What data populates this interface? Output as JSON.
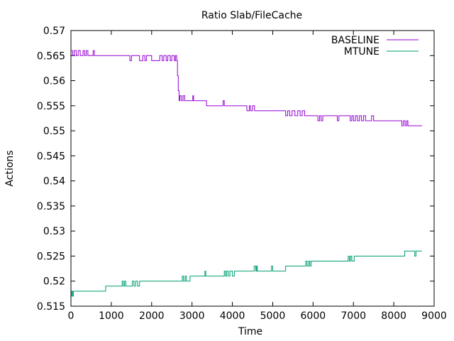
{
  "chart_data": {
    "type": "line",
    "title": "Ratio Slab/FileCache",
    "xlabel": "Time",
    "ylabel": "Actions",
    "xlim": [
      0,
      9000
    ],
    "ylim": [
      0.515,
      0.57
    ],
    "x_ticks": [
      "0",
      "1000",
      "2000",
      "3000",
      "4000",
      "5000",
      "6000",
      "7000",
      "8000",
      "9000"
    ],
    "y_ticks": [
      "0.515",
      "0.52",
      "0.525",
      "0.53",
      "0.535",
      "0.54",
      "0.545",
      "0.55",
      "0.555",
      "0.56",
      "0.565",
      "0.57"
    ],
    "grid": false,
    "legend_position": "top-right",
    "series": [
      {
        "name": "BASELINE",
        "color": "#9400d3",
        "points": [
          [
            0,
            0.566
          ],
          [
            40,
            0.565
          ],
          [
            80,
            0.566
          ],
          [
            130,
            0.565
          ],
          [
            180,
            0.566
          ],
          [
            230,
            0.565
          ],
          [
            300,
            0.566
          ],
          [
            340,
            0.565
          ],
          [
            380,
            0.566
          ],
          [
            420,
            0.565
          ],
          [
            550,
            0.566
          ],
          [
            580,
            0.565
          ],
          [
            1400,
            0.565
          ],
          [
            1460,
            0.564
          ],
          [
            1500,
            0.565
          ],
          [
            1680,
            0.565
          ],
          [
            1700,
            0.564
          ],
          [
            1780,
            0.565
          ],
          [
            1830,
            0.564
          ],
          [
            1870,
            0.565
          ],
          [
            1950,
            0.565
          ],
          [
            2000,
            0.564
          ],
          [
            2140,
            0.564
          ],
          [
            2200,
            0.565
          ],
          [
            2260,
            0.564
          ],
          [
            2300,
            0.565
          ],
          [
            2360,
            0.564
          ],
          [
            2400,
            0.565
          ],
          [
            2460,
            0.564
          ],
          [
            2500,
            0.565
          ],
          [
            2560,
            0.564
          ],
          [
            2590,
            0.565
          ],
          [
            2620,
            0.564
          ],
          [
            2640,
            0.561
          ],
          [
            2660,
            0.558
          ],
          [
            2680,
            0.556
          ],
          [
            2700,
            0.557
          ],
          [
            2740,
            0.556
          ],
          [
            2780,
            0.557
          ],
          [
            2820,
            0.556
          ],
          [
            3000,
            0.556
          ],
          [
            3020,
            0.557
          ],
          [
            3040,
            0.556
          ],
          [
            3350,
            0.556
          ],
          [
            3360,
            0.555
          ],
          [
            3750,
            0.555
          ],
          [
            3770,
            0.556
          ],
          [
            3800,
            0.555
          ],
          [
            4350,
            0.555
          ],
          [
            4360,
            0.554
          ],
          [
            4420,
            0.555
          ],
          [
            4450,
            0.554
          ],
          [
            4500,
            0.555
          ],
          [
            4550,
            0.554
          ],
          [
            5300,
            0.554
          ],
          [
            5320,
            0.553
          ],
          [
            5370,
            0.554
          ],
          [
            5420,
            0.553
          ],
          [
            5480,
            0.554
          ],
          [
            5550,
            0.553
          ],
          [
            5620,
            0.554
          ],
          [
            5680,
            0.553
          ],
          [
            5730,
            0.554
          ],
          [
            5790,
            0.553
          ],
          [
            6100,
            0.553
          ],
          [
            6120,
            0.552
          ],
          [
            6160,
            0.553
          ],
          [
            6200,
            0.552
          ],
          [
            6240,
            0.553
          ],
          [
            6580,
            0.553
          ],
          [
            6600,
            0.552
          ],
          [
            6640,
            0.553
          ],
          [
            6900,
            0.553
          ],
          [
            6920,
            0.552
          ],
          [
            6960,
            0.553
          ],
          [
            7000,
            0.552
          ],
          [
            7050,
            0.553
          ],
          [
            7100,
            0.552
          ],
          [
            7150,
            0.553
          ],
          [
            7200,
            0.552
          ],
          [
            7250,
            0.553
          ],
          [
            7300,
            0.552
          ],
          [
            7450,
            0.553
          ],
          [
            7500,
            0.552
          ],
          [
            8180,
            0.552
          ],
          [
            8200,
            0.551
          ],
          [
            8240,
            0.552
          ],
          [
            8280,
            0.551
          ],
          [
            8320,
            0.552
          ],
          [
            8350,
            0.551
          ],
          [
            8700,
            0.551
          ]
        ]
      },
      {
        "name": "MTUNE",
        "color": "#009e73",
        "points": [
          [
            0,
            0.517
          ],
          [
            20,
            0.518
          ],
          [
            40,
            0.517
          ],
          [
            60,
            0.518
          ],
          [
            850,
            0.518
          ],
          [
            860,
            0.519
          ],
          [
            1250,
            0.519
          ],
          [
            1270,
            0.52
          ],
          [
            1300,
            0.519
          ],
          [
            1330,
            0.52
          ],
          [
            1360,
            0.519
          ],
          [
            1500,
            0.519
          ],
          [
            1520,
            0.52
          ],
          [
            1560,
            0.519
          ],
          [
            1600,
            0.52
          ],
          [
            1650,
            0.519
          ],
          [
            1700,
            0.52
          ],
          [
            2250,
            0.52
          ],
          [
            2750,
            0.52
          ],
          [
            2760,
            0.521
          ],
          [
            2790,
            0.52
          ],
          [
            2830,
            0.521
          ],
          [
            2860,
            0.52
          ],
          [
            2900,
            0.52
          ],
          [
            2950,
            0.521
          ],
          [
            3300,
            0.521
          ],
          [
            3320,
            0.522
          ],
          [
            3340,
            0.521
          ],
          [
            3780,
            0.521
          ],
          [
            3800,
            0.522
          ],
          [
            3830,
            0.521
          ],
          [
            3860,
            0.522
          ],
          [
            3900,
            0.521
          ],
          [
            3940,
            0.522
          ],
          [
            4000,
            0.521
          ],
          [
            4050,
            0.522
          ],
          [
            4500,
            0.522
          ],
          [
            4540,
            0.523
          ],
          [
            4580,
            0.522
          ],
          [
            4600,
            0.523
          ],
          [
            4620,
            0.522
          ],
          [
            4950,
            0.522
          ],
          [
            4970,
            0.523
          ],
          [
            5000,
            0.522
          ],
          [
            5300,
            0.522
          ],
          [
            5320,
            0.523
          ],
          [
            5800,
            0.523
          ],
          [
            5820,
            0.524
          ],
          [
            5850,
            0.523
          ],
          [
            5890,
            0.524
          ],
          [
            5920,
            0.523
          ],
          [
            5950,
            0.524
          ],
          [
            6850,
            0.524
          ],
          [
            6870,
            0.525
          ],
          [
            6900,
            0.524
          ],
          [
            6930,
            0.525
          ],
          [
            6960,
            0.524
          ],
          [
            7000,
            0.524
          ],
          [
            7020,
            0.525
          ],
          [
            8250,
            0.525
          ],
          [
            8270,
            0.526
          ],
          [
            8500,
            0.526
          ],
          [
            8520,
            0.525
          ],
          [
            8550,
            0.526
          ],
          [
            8700,
            0.526
          ]
        ]
      }
    ]
  }
}
